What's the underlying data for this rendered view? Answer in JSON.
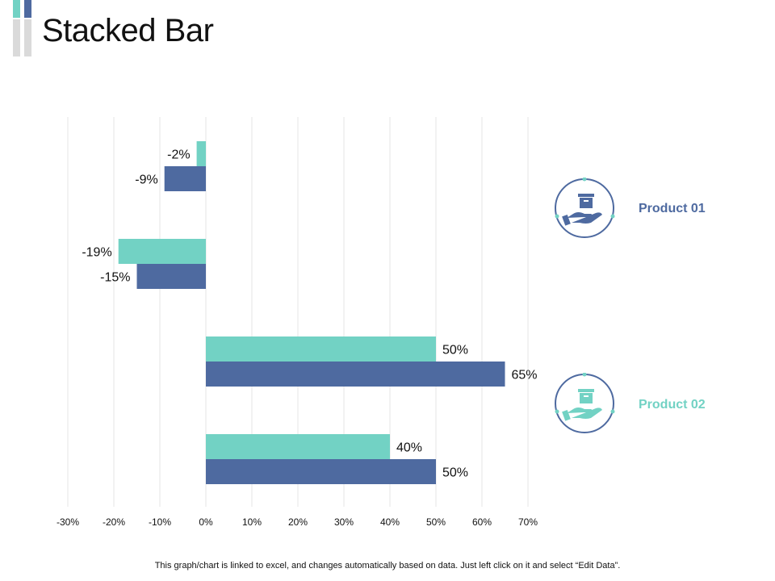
{
  "page": {
    "title": "Stacked Bar",
    "footnote": "This graph/chart is linked to excel, and changes automatically based on data. Just left click on it and select “Edit Data”."
  },
  "legend": [
    {
      "label": "Product 01",
      "color": "#4E6AA0",
      "icon": "box-in-hand-icon"
    },
    {
      "label": "Product 02",
      "color": "#72D2C4",
      "icon": "box-in-hand-icon"
    }
  ],
  "chart_data": {
    "type": "bar",
    "orientation": "horizontal",
    "categories": [
      "",
      "",
      "",
      ""
    ],
    "series": [
      {
        "name": "Product 02",
        "color": "#72D2C4",
        "values": [
          -2,
          -19,
          50,
          40
        ],
        "labels": [
          "-2%",
          "-19%",
          "50%",
          "40%"
        ]
      },
      {
        "name": "Product 01",
        "color": "#4E6AA0",
        "values": [
          -9,
          -15,
          65,
          50
        ],
        "labels": [
          "-9%",
          "-15%",
          "65%",
          "50%"
        ]
      }
    ],
    "x_ticks": [
      "-30%",
      "-20%",
      "-10%",
      "0%",
      "10%",
      "20%",
      "30%",
      "40%",
      "50%",
      "60%",
      "70%"
    ],
    "xlim": [
      -30,
      70
    ],
    "grid": true,
    "legend_position": "right"
  }
}
